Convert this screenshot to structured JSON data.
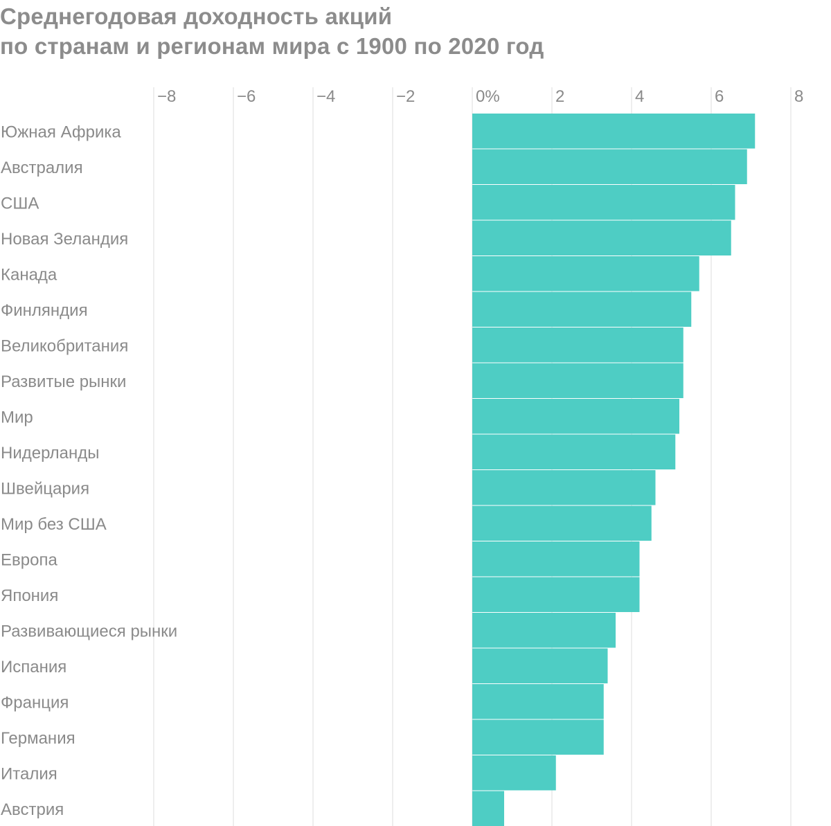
{
  "title_lines": [
    "Среднегодовая доходность акций",
    "по странам и регионам мира с 1900 по 2020 год"
  ],
  "colors": {
    "bar": "#4ecdc4",
    "grid": "#e3e3e3",
    "text": "#8a8a8a",
    "title": "#8c8c8c"
  },
  "chart_data": {
    "type": "bar",
    "orientation": "horizontal",
    "title": "Среднегодовая доходность акций по странам и регионам мира с 1900 по 2020 год",
    "xlim": [
      -8,
      8
    ],
    "xticks": [
      -8,
      -6,
      -4,
      -2,
      0,
      2,
      4,
      6,
      8
    ],
    "xtick_labels": [
      "−8",
      "−6",
      "−4",
      "−2",
      "0%",
      "2",
      "4",
      "6",
      "8"
    ],
    "grid": true,
    "categories": [
      "Южная Африка",
      "Австралия",
      "США",
      "Новая Зеландия",
      "Канада",
      "Финляндия",
      "Великобритания",
      "Развитые рынки",
      "Мир",
      "Нидерланды",
      "Швейцария",
      "Мир без США",
      "Европа",
      "Япония",
      "Развивающиеся рынки",
      "Испания",
      "Франция",
      "Германия",
      "Италия",
      "Австрия"
    ],
    "values": [
      7.1,
      6.9,
      6.6,
      6.5,
      5.7,
      5.5,
      5.3,
      5.3,
      5.2,
      5.1,
      4.6,
      4.5,
      4.2,
      4.2,
      3.6,
      3.4,
      3.3,
      3.3,
      2.1,
      0.8
    ]
  }
}
